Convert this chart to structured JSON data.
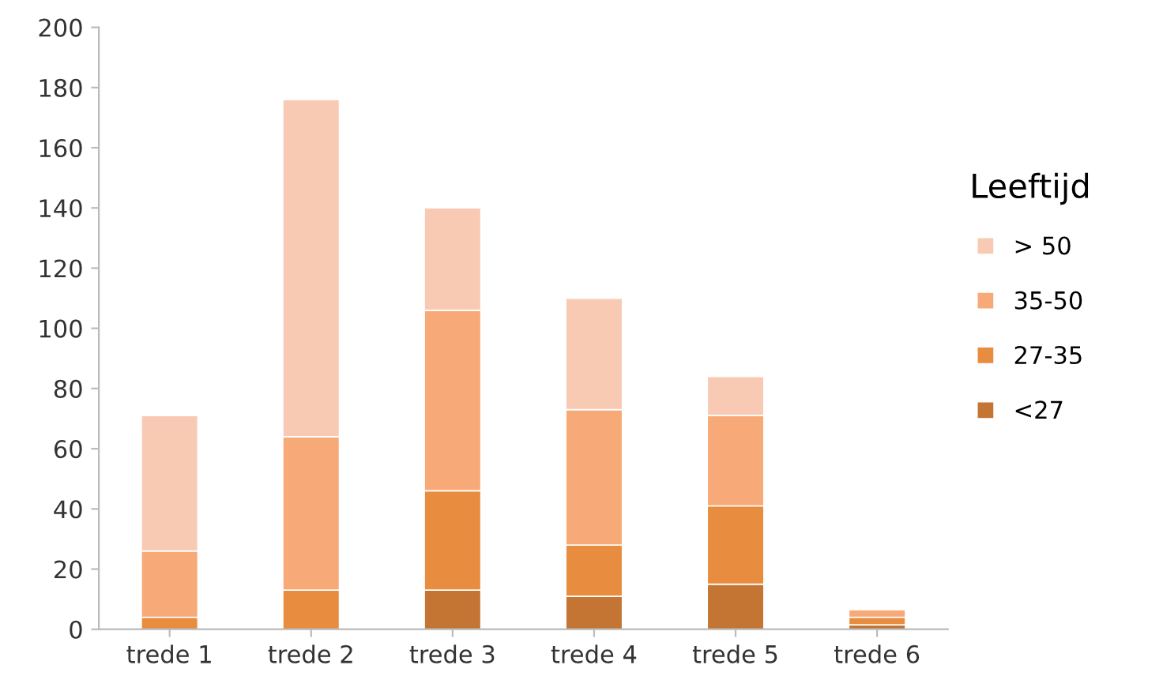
{
  "chart_data": {
    "type": "bar",
    "stacked": true,
    "legend_title": "Leeftijd",
    "legend": "right",
    "categories": [
      "trede 1",
      "trede 2",
      "trede 3",
      "trede 4",
      "trede 5",
      "trede 6"
    ],
    "series": [
      {
        "name": "<27",
        "color": "#c47533",
        "values": [
          0,
          0,
          13,
          11,
          15,
          1.5
        ]
      },
      {
        "name": "27-35",
        "color": "#e88c3f",
        "values": [
          4,
          13,
          33,
          17,
          26,
          2.5
        ]
      },
      {
        "name": "35-50",
        "color": "#f7aa78",
        "values": [
          22,
          51,
          60,
          45,
          30,
          2.5
        ]
      },
      {
        "name": "> 50",
        "color": "#f8cab4",
        "values": [
          45,
          112,
          34,
          37,
          13,
          null
        ]
      }
    ],
    "ylim": [
      0,
      200
    ],
    "yticks": [
      0,
      20,
      40,
      60,
      80,
      100,
      120,
      140,
      160,
      180,
      200
    ],
    "grid": false
  }
}
